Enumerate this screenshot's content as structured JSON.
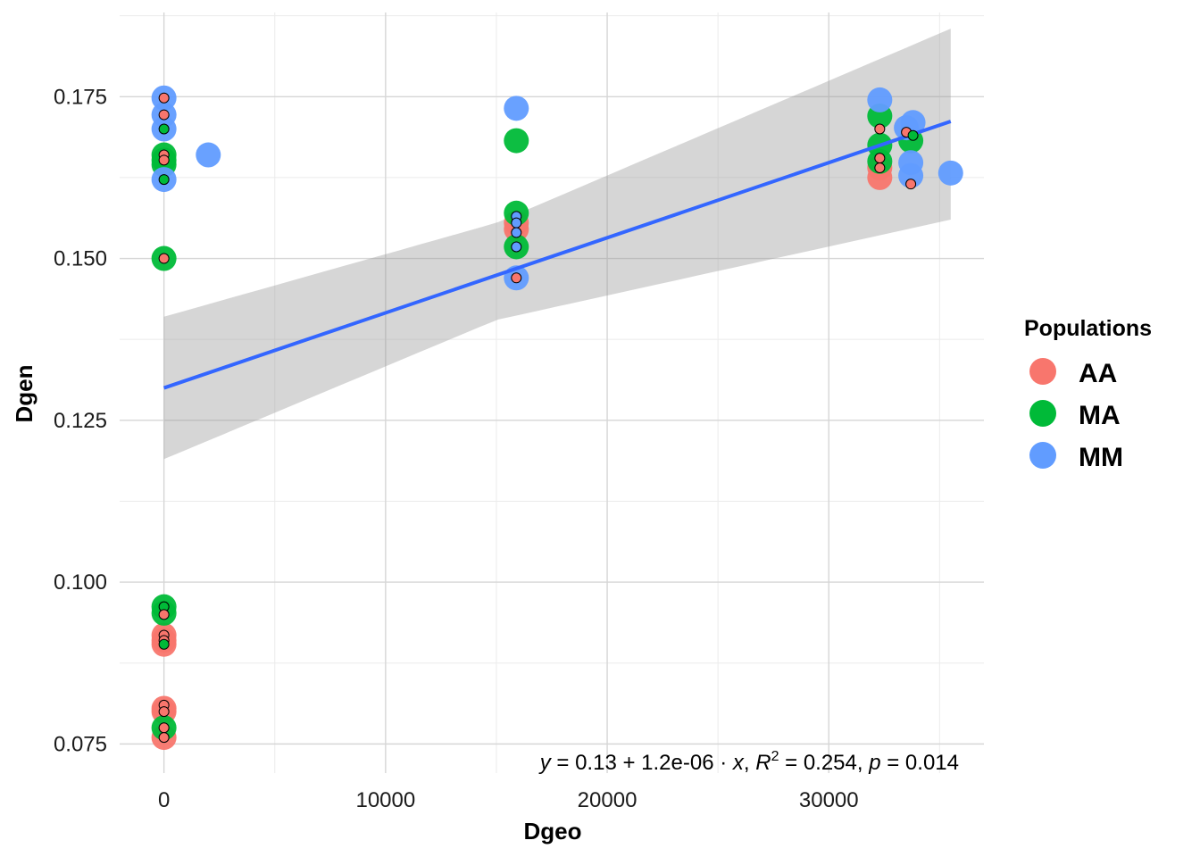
{
  "chart_data": {
    "type": "scatter",
    "title": "",
    "xlabel": "Dgeo",
    "ylabel": "Dgen",
    "xlim": [
      -2000,
      37000
    ],
    "ylim": [
      0.0705,
      0.188
    ],
    "x_ticks": [
      0,
      10000,
      20000,
      30000
    ],
    "x_tick_labels": [
      "0",
      "10000",
      "20000",
      "30000"
    ],
    "y_ticks": [
      0.075,
      0.1,
      0.125,
      0.15,
      0.175
    ],
    "y_tick_labels": [
      "0.075",
      "0.100",
      "0.125",
      "0.150",
      "0.175"
    ],
    "grid": true,
    "legend": {
      "title": "Populations",
      "placement": "right",
      "entries": [
        {
          "label": "AA",
          "color": "#F8766D"
        },
        {
          "label": "MA",
          "color": "#00BA38"
        },
        {
          "label": "MM",
          "color": "#619CFF"
        }
      ]
    },
    "series": [
      {
        "name": "AA",
        "color": "#F8766D",
        "points": [
          {
            "x": 0,
            "y": 0.091,
            "inner": "#F8766D"
          },
          {
            "x": 0,
            "y": 0.0918,
            "inner": "#F8766D"
          },
          {
            "x": 0,
            "y": 0.0904,
            "inner": "#F8766D"
          },
          {
            "x": 0,
            "y": 0.0805,
            "inner": "#F8766D"
          },
          {
            "x": 0,
            "y": 0.08,
            "inner": "#F8766D"
          },
          {
            "x": 0,
            "y": 0.076,
            "inner": "#F8766D"
          },
          {
            "x": 15900,
            "y": 0.1545,
            "inner": "#F8766D"
          },
          {
            "x": 15900,
            "y": 0.1555,
            "inner": "#F8766D"
          },
          {
            "x": 32300,
            "y": 0.1625,
            "inner": "#F8766D"
          },
          {
            "x": 32300,
            "y": 0.164,
            "inner": "#F8766D"
          }
        ]
      },
      {
        "name": "MA",
        "color": "#00BA38",
        "points": [
          {
            "x": 0,
            "y": 0.166,
            "inner": "#F8766D"
          },
          {
            "x": 0,
            "y": 0.1652,
            "inner": "#F8766D"
          },
          {
            "x": 0,
            "y": 0.1645,
            "inner": "#F8766D"
          },
          {
            "x": 0,
            "y": 0.15,
            "inner": "#F8766D"
          },
          {
            "x": 0,
            "y": 0.0962,
            "inner": "#00BA38"
          },
          {
            "x": 0,
            "y": 0.0952,
            "inner": "#F8766D"
          },
          {
            "x": 0,
            "y": 0.0775,
            "inner": "#F8766D"
          },
          {
            "x": 15900,
            "y": 0.1682,
            "inner": "#619CFF"
          },
          {
            "x": 15900,
            "y": 0.157,
            "inner": "#F8766D"
          },
          {
            "x": 15900,
            "y": 0.1518,
            "inner": "#619CFF"
          },
          {
            "x": 32300,
            "y": 0.172,
            "inner": "#F8766D"
          },
          {
            "x": 32300,
            "y": 0.1675,
            "inner": "#F8766D"
          },
          {
            "x": 32300,
            "y": 0.165,
            "inner": "#F8766D"
          },
          {
            "x": 33700,
            "y": 0.1682,
            "inner": "#00BA38"
          }
        ]
      },
      {
        "name": "MM",
        "color": "#619CFF",
        "points": [
          {
            "x": 0,
            "y": 0.1748,
            "inner": "#F8766D"
          },
          {
            "x": 0,
            "y": 0.1722,
            "inner": "#F8766D"
          },
          {
            "x": 0,
            "y": 0.17,
            "inner": "#00BA38"
          },
          {
            "x": 0,
            "y": 0.1622,
            "inner": "#00BA38"
          },
          {
            "x": 2000,
            "y": 0.166,
            "inner": "#F8766D"
          },
          {
            "x": 15900,
            "y": 0.1732,
            "inner": "#619CFF"
          },
          {
            "x": 15900,
            "y": 0.147,
            "inner": "#F8766D"
          },
          {
            "x": 32300,
            "y": 0.1745,
            "inner": "#F8766D"
          },
          {
            "x": 33500,
            "y": 0.1702,
            "inner": "#F8766D"
          },
          {
            "x": 33800,
            "y": 0.171,
            "inner": "#619CFF"
          },
          {
            "x": 33700,
            "y": 0.1648,
            "inner": "#F8766D"
          },
          {
            "x": 33700,
            "y": 0.1628,
            "inner": "#F8766D"
          },
          {
            "x": 35500,
            "y": 0.1632,
            "inner": "#619CFF"
          }
        ]
      }
    ],
    "small_points": [
      {
        "x": 0,
        "y": 0.1748,
        "fill": "#F8766D"
      },
      {
        "x": 0,
        "y": 0.1722,
        "fill": "#F8766D"
      },
      {
        "x": 0,
        "y": 0.17,
        "fill": "#00BA38"
      },
      {
        "x": 0,
        "y": 0.166,
        "fill": "#F8766D"
      },
      {
        "x": 0,
        "y": 0.1652,
        "fill": "#F8766D"
      },
      {
        "x": 0,
        "y": 0.1622,
        "fill": "#00BA38"
      },
      {
        "x": 0,
        "y": 0.15,
        "fill": "#F8766D"
      },
      {
        "x": 0,
        "y": 0.0962,
        "fill": "#00BA38"
      },
      {
        "x": 0,
        "y": 0.095,
        "fill": "#F8766D"
      },
      {
        "x": 0,
        "y": 0.0918,
        "fill": "#F8766D"
      },
      {
        "x": 0,
        "y": 0.091,
        "fill": "#F8766D"
      },
      {
        "x": 0,
        "y": 0.0904,
        "fill": "#00BA38"
      },
      {
        "x": 0,
        "y": 0.081,
        "fill": "#F8766D"
      },
      {
        "x": 0,
        "y": 0.08,
        "fill": "#F8766D"
      },
      {
        "x": 0,
        "y": 0.0775,
        "fill": "#F8766D"
      },
      {
        "x": 0,
        "y": 0.076,
        "fill": "#F8766D"
      },
      {
        "x": 15900,
        "y": 0.1565,
        "fill": "#619CFF"
      },
      {
        "x": 15900,
        "y": 0.1555,
        "fill": "#619CFF"
      },
      {
        "x": 15900,
        "y": 0.154,
        "fill": "#619CFF"
      },
      {
        "x": 15900,
        "y": 0.1518,
        "fill": "#619CFF"
      },
      {
        "x": 15900,
        "y": 0.147,
        "fill": "#F8766D"
      },
      {
        "x": 32300,
        "y": 0.17,
        "fill": "#F8766D"
      },
      {
        "x": 32300,
        "y": 0.1655,
        "fill": "#F8766D"
      },
      {
        "x": 32300,
        "y": 0.164,
        "fill": "#F8766D"
      },
      {
        "x": 33500,
        "y": 0.1695,
        "fill": "#F8766D"
      },
      {
        "x": 33800,
        "y": 0.169,
        "fill": "#00BA38"
      },
      {
        "x": 33700,
        "y": 0.1615,
        "fill": "#F8766D"
      }
    ],
    "regression": {
      "x_range": [
        0,
        35500
      ],
      "intercept": 0.13,
      "slope": 1.16e-06,
      "ci_lower": [
        [
          0,
          0.119
        ],
        [
          15000,
          0.1405
        ],
        [
          35500,
          0.156
        ]
      ],
      "ci_upper": [
        [
          0,
          0.141
        ],
        [
          15000,
          0.1555
        ],
        [
          35500,
          0.1855
        ]
      ],
      "line_color": "#3366FF",
      "band_color": "#999999"
    },
    "annotation": {
      "y_var": "y",
      "eq_mid": " = 0.13 + 1.2e-06 · ",
      "x_var": "x",
      "sep1": ",  ",
      "r_var": "R",
      "r_sup": "2",
      "r_val": " = 0.254,  ",
      "p_var": "p",
      "p_val": " = 0.014"
    }
  }
}
